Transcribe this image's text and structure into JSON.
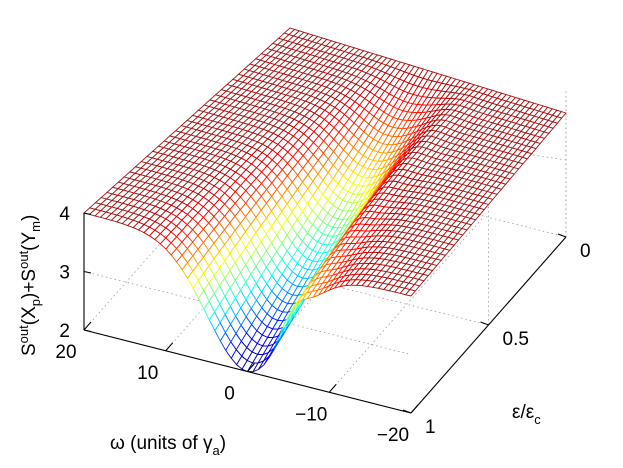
{
  "chart_data": {
    "type": "surface",
    "title": "",
    "xlabel": "ω (units of γ",
    "xlabel_sub": "a",
    "xlabel_close": ")",
    "ylabel": "ε/ε",
    "ylabel_sub": "c",
    "zlabel_parts": [
      "S",
      "out",
      "(X",
      "p",
      ")+S",
      "out",
      "(Y",
      "m",
      ")"
    ],
    "x_range": [
      -20,
      20
    ],
    "y_range": [
      0,
      1
    ],
    "z_range": [
      2,
      4
    ],
    "x_ticks": [
      "20",
      "10",
      "0",
      "−10",
      "−20"
    ],
    "x_tick_values": [
      20,
      10,
      0,
      -10,
      -20
    ],
    "y_ticks": [
      "0",
      "0.5",
      "1"
    ],
    "y_tick_values": [
      0,
      0.5,
      1
    ],
    "z_ticks": [
      "2",
      "3",
      "4"
    ],
    "z_tick_values": [
      2,
      3,
      4
    ],
    "grid": true,
    "colormap": "jet",
    "surface_description": "baseline 4 away from ω = 0; a trough centred at ω ≈ 0 that deepens as ε/ε_c increases, reaching ≈ 2 at ε/ε_c = 1 with a small overshoot ridge on the negative-ω side",
    "samples": [
      {
        "eps": 0.0,
        "omega_0_value": 4.0
      },
      {
        "eps": 0.25,
        "omega_0_value": 3.6
      },
      {
        "eps": 0.5,
        "omega_0_value": 3.1
      },
      {
        "eps": 0.75,
        "omega_0_value": 2.55
      },
      {
        "eps": 1.0,
        "omega_0_value": 2.0
      }
    ]
  }
}
